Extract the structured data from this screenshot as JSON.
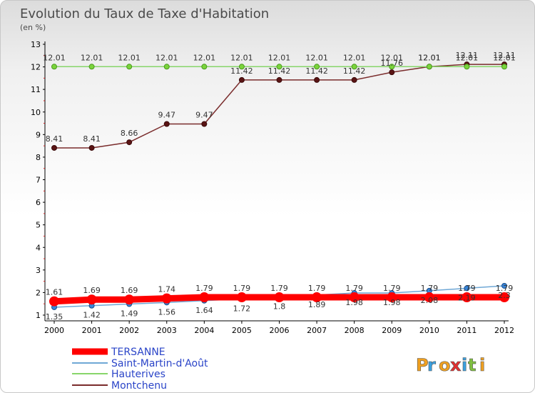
{
  "chart_data": {
    "type": "line",
    "title": "Evolution du Taux de Taxe d'Habitation",
    "subtitle": "(en %)",
    "xlabel": "",
    "ylabel": "",
    "categories": [
      "2000",
      "2001",
      "2002",
      "2003",
      "2004",
      "2005",
      "2006",
      "2007",
      "2008",
      "2009",
      "2010",
      "2011",
      "2012"
    ],
    "ylim": [
      1,
      13
    ],
    "yticks": [
      1,
      2,
      3,
      4,
      5,
      6,
      7,
      8,
      9,
      10,
      11,
      12,
      13
    ],
    "grid": false,
    "legend_position": "bottom-left",
    "series": [
      {
        "name": "TERSANNE",
        "color": "#ff0000",
        "values": [
          1.61,
          1.69,
          1.69,
          1.74,
          1.79,
          1.79,
          1.79,
          1.79,
          1.79,
          1.79,
          1.79,
          1.79,
          1.79
        ],
        "labels": [
          "1.61",
          "1.69",
          "1.69",
          "1.74",
          "1.79",
          "1.79",
          "1.79",
          "1.79",
          "1.79",
          "1.79",
          "1.79",
          "1.79",
          "1.79"
        ]
      },
      {
        "name": "Saint-Martin-d'Août",
        "color": "#6fa8d6",
        "values": [
          1.35,
          1.42,
          1.49,
          1.56,
          1.64,
          1.72,
          1.8,
          1.89,
          1.98,
          1.98,
          2.08,
          2.19,
          2.3
        ],
        "labels": [
          "1.35",
          "1.42",
          "1.49",
          "1.56",
          "1.64",
          "1.72",
          "1.8",
          "1.89",
          "1.98",
          "1.98",
          "2.08",
          "2.19",
          "2.3"
        ]
      },
      {
        "name": "Hauterives",
        "color": "#88d66a",
        "values": [
          12.01,
          12.01,
          12.01,
          12.01,
          12.01,
          12.01,
          12.01,
          12.01,
          12.01,
          12.01,
          12.01,
          12.01,
          12.01
        ],
        "labels": [
          "12.01",
          "12.01",
          "12.01",
          "12.01",
          "12.01",
          "12.01",
          "12.01",
          "12.01",
          "12.01",
          "12.01",
          "12.01",
          "12.01",
          "12.01"
        ]
      },
      {
        "name": "Montchenu",
        "color": "#7a2c2c",
        "values": [
          8.41,
          8.41,
          8.66,
          9.47,
          9.47,
          11.42,
          11.42,
          11.42,
          11.42,
          11.76,
          12.01,
          12.11,
          12.11
        ],
        "labels": [
          "8.41",
          "8.41",
          "8.66",
          "9.47",
          "9.47",
          "11.42",
          "11.42",
          "11.42",
          "11.42",
          "11.76",
          "12.01",
          "12.11",
          "12.11"
        ]
      }
    ]
  },
  "logo": {
    "text": "Proxiti",
    "letters": [
      "P",
      "r",
      "o",
      "x",
      "i",
      "t",
      "i"
    ]
  }
}
